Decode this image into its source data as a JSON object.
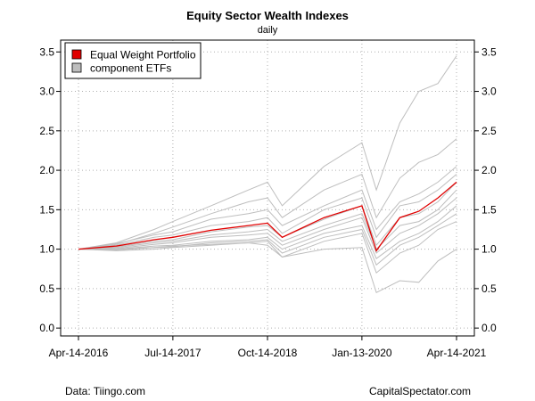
{
  "chart_data": {
    "type": "line",
    "title": "Equity Sector Wealth Indexes",
    "subtitle": "daily",
    "xlabel": "",
    "ylabel": "",
    "x_ticks": [
      "Apr-14-2016",
      "Jul-14-2017",
      "Oct-14-2018",
      "Jan-13-2020",
      "Apr-14-2021"
    ],
    "ylim": [
      -0.1,
      3.65
    ],
    "y_ticks": [
      "0.0",
      "0.5",
      "1.0",
      "1.5",
      "2.0",
      "2.5",
      "3.0",
      "3.5"
    ],
    "grid": true,
    "legend_position": "top-left",
    "legend": [
      "Equal Weight Portfolio",
      "component ETFs"
    ],
    "colors": {
      "portfolio": "#e00000",
      "components": "#bebebe",
      "grid": "#b0b0b0"
    },
    "x": [
      "Apr-14-2016",
      "Oct-14-2016",
      "Apr-14-2017",
      "Jul-14-2017",
      "Jan-14-2018",
      "Jul-14-2018",
      "Oct-14-2018",
      "Dec-24-2018",
      "Jul-14-2019",
      "Jan-13-2020",
      "Mar-23-2020",
      "Jul-14-2020",
      "Oct-14-2020",
      "Jan-14-2021",
      "Apr-14-2021"
    ],
    "series": [
      {
        "role": "portfolio",
        "values": [
          1.0,
          1.04,
          1.12,
          1.15,
          1.24,
          1.3,
          1.33,
          1.15,
          1.4,
          1.55,
          0.98,
          1.4,
          1.48,
          1.65,
          1.85
        ]
      },
      {
        "role": "component",
        "values": [
          1.0,
          1.08,
          1.25,
          1.35,
          1.55,
          1.75,
          1.85,
          1.55,
          2.05,
          2.35,
          1.75,
          2.6,
          3.0,
          3.1,
          3.45
        ]
      },
      {
        "role": "component",
        "values": [
          1.0,
          1.06,
          1.2,
          1.28,
          1.45,
          1.6,
          1.65,
          1.4,
          1.75,
          1.95,
          1.4,
          1.9,
          2.1,
          2.2,
          2.4
        ]
      },
      {
        "role": "component",
        "values": [
          1.0,
          1.07,
          1.18,
          1.22,
          1.38,
          1.45,
          1.5,
          1.3,
          1.55,
          1.75,
          1.25,
          1.6,
          1.7,
          1.85,
          2.05
        ]
      },
      {
        "role": "component",
        "values": [
          1.0,
          1.05,
          1.15,
          1.18,
          1.3,
          1.35,
          1.4,
          1.2,
          1.5,
          1.65,
          1.15,
          1.55,
          1.6,
          1.75,
          1.95
        ]
      },
      {
        "role": "component",
        "values": [
          1.0,
          1.03,
          1.1,
          1.12,
          1.22,
          1.28,
          1.3,
          1.15,
          1.38,
          1.55,
          1.05,
          1.4,
          1.45,
          1.6,
          1.85
        ]
      },
      {
        "role": "component",
        "values": [
          1.0,
          1.02,
          1.08,
          1.1,
          1.18,
          1.22,
          1.25,
          1.1,
          1.3,
          1.45,
          1.0,
          1.3,
          1.35,
          1.5,
          1.75
        ]
      },
      {
        "role": "component",
        "values": [
          1.0,
          1.01,
          1.06,
          1.08,
          1.15,
          1.18,
          1.2,
          1.05,
          1.25,
          1.4,
          0.95,
          1.2,
          1.3,
          1.45,
          1.65
        ]
      },
      {
        "role": "component",
        "values": [
          1.0,
          1.0,
          1.04,
          1.05,
          1.1,
          1.12,
          1.15,
          1.0,
          1.2,
          1.3,
          0.88,
          1.1,
          1.2,
          1.35,
          1.55
        ]
      },
      {
        "role": "component",
        "values": [
          1.0,
          0.99,
          1.02,
          1.03,
          1.08,
          1.1,
          1.12,
          0.95,
          1.15,
          1.25,
          0.8,
          1.05,
          1.15,
          1.3,
          1.45
        ]
      },
      {
        "role": "component",
        "values": [
          1.0,
          0.98,
          1.0,
          1.02,
          1.05,
          1.08,
          1.1,
          0.9,
          1.1,
          1.2,
          0.7,
          0.95,
          1.05,
          1.25,
          1.35
        ]
      },
      {
        "role": "component",
        "values": [
          1.0,
          1.0,
          1.02,
          1.04,
          1.06,
          1.08,
          1.05,
          0.9,
          1.0,
          1.02,
          0.45,
          0.6,
          0.58,
          0.85,
          1.0
        ]
      }
    ]
  },
  "footer": {
    "source": "Data: Tiingo.com",
    "credit": "CapitalSpectator.com"
  }
}
